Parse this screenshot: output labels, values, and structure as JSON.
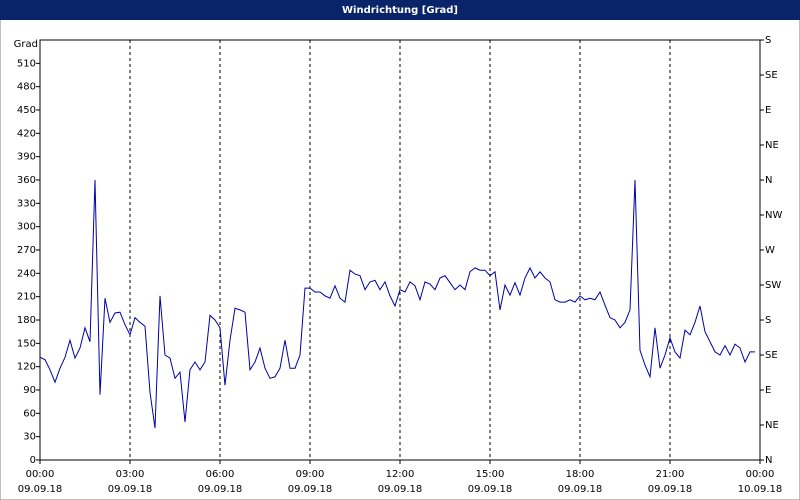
{
  "chart_data": {
    "type": "line",
    "title": "Windrichtung [Grad]",
    "y_label": "Grad",
    "color": "#0000a8",
    "grid": true,
    "xlim": [
      0,
      1440
    ],
    "xticks": [
      {
        "value": 0,
        "label": "00:00",
        "date": "09.09.18"
      },
      {
        "value": 180,
        "label": "03:00",
        "date": "09.09.18"
      },
      {
        "value": 360,
        "label": "06:00",
        "date": "09.09.18"
      },
      {
        "value": 540,
        "label": "09:00",
        "date": "09.09.18"
      },
      {
        "value": 720,
        "label": "12:00",
        "date": "09.09.18"
      },
      {
        "value": 900,
        "label": "15:00",
        "date": "09.09.18"
      },
      {
        "value": 1080,
        "label": "18:00",
        "date": "09.09.18"
      },
      {
        "value": 1260,
        "label": "21:00",
        "date": "09.09.18"
      },
      {
        "value": 1440,
        "label": "00:00",
        "date": "10.09.18"
      }
    ],
    "ylim": [
      0,
      540
    ],
    "yticks": [
      0,
      30,
      60,
      90,
      120,
      150,
      180,
      210,
      240,
      270,
      300,
      330,
      360,
      390,
      420,
      450,
      480,
      510
    ],
    "y2lim": [
      0,
      540
    ],
    "y2ticks": [
      {
        "value": 0,
        "label": "N"
      },
      {
        "value": 45,
        "label": "NE"
      },
      {
        "value": 90,
        "label": "E"
      },
      {
        "value": 135,
        "label": "SE"
      },
      {
        "value": 180,
        "label": "S"
      },
      {
        "value": 225,
        "label": "SW"
      },
      {
        "value": 270,
        "label": "W"
      },
      {
        "value": 315,
        "label": "NW"
      },
      {
        "value": 360,
        "label": "N"
      },
      {
        "value": 405,
        "label": "NE"
      },
      {
        "value": 450,
        "label": "E"
      },
      {
        "value": 495,
        "label": "SE"
      },
      {
        "value": 540,
        "label": "S"
      }
    ],
    "x": [
      0,
      10,
      20,
      30,
      40,
      50,
      60,
      70,
      80,
      90,
      100,
      110,
      120,
      130,
      140,
      150,
      160,
      170,
      180,
      190,
      200,
      210,
      220,
      230,
      240,
      250,
      260,
      270,
      280,
      290,
      300,
      310,
      320,
      330,
      340,
      350,
      360,
      370,
      380,
      390,
      400,
      410,
      420,
      430,
      440,
      450,
      460,
      470,
      480,
      490,
      500,
      510,
      520,
      530,
      540,
      550,
      560,
      570,
      580,
      590,
      600,
      610,
      620,
      630,
      640,
      650,
      660,
      670,
      680,
      690,
      700,
      710,
      720,
      730,
      740,
      750,
      760,
      770,
      780,
      790,
      800,
      810,
      820,
      830,
      840,
      850,
      860,
      870,
      880,
      890,
      900,
      910,
      920,
      930,
      940,
      950,
      960,
      970,
      980,
      990,
      1000,
      1010,
      1020,
      1030,
      1040,
      1050,
      1060,
      1070,
      1080,
      1090,
      1100,
      1110,
      1120,
      1130,
      1140,
      1150,
      1160,
      1170,
      1180,
      1190,
      1200,
      1210,
      1220,
      1230,
      1240,
      1250,
      1260,
      1270,
      1280,
      1290,
      1300,
      1310,
      1320,
      1330,
      1340,
      1350,
      1360,
      1370,
      1380,
      1390,
      1400,
      1410,
      1420,
      1430
    ],
    "values": [
      132,
      129,
      116,
      100,
      118,
      132,
      154,
      131,
      144,
      170,
      152,
      360,
      84,
      208,
      177,
      189,
      190,
      174,
      161,
      183,
      177,
      172,
      87,
      41,
      211,
      135,
      131,
      105,
      113,
      49,
      116,
      126,
      116,
      126,
      186,
      180,
      170,
      96,
      154,
      195,
      193,
      190,
      116,
      126,
      144,
      118,
      105,
      107,
      118,
      154,
      118,
      118,
      135,
      221,
      221,
      216,
      216,
      211,
      208,
      224,
      208,
      203,
      244,
      239,
      237,
      219,
      229,
      231,
      219,
      229,
      211,
      198,
      219,
      216,
      229,
      224,
      206,
      229,
      226,
      219,
      234,
      237,
      228,
      219,
      225,
      219,
      242,
      247,
      244,
      244,
      237,
      242,
      193,
      225,
      212,
      228,
      212,
      234,
      247,
      234,
      242,
      234,
      229,
      206,
      203,
      203,
      206,
      203,
      211,
      206,
      208,
      206,
      216,
      199,
      183,
      180,
      170,
      177,
      193,
      360,
      141,
      122,
      107,
      170,
      118,
      135,
      157,
      139,
      131,
      167,
      161,
      177,
      198,
      165,
      152,
      139,
      135,
      147,
      135,
      149,
      144,
      126,
      139,
      139
    ]
  }
}
